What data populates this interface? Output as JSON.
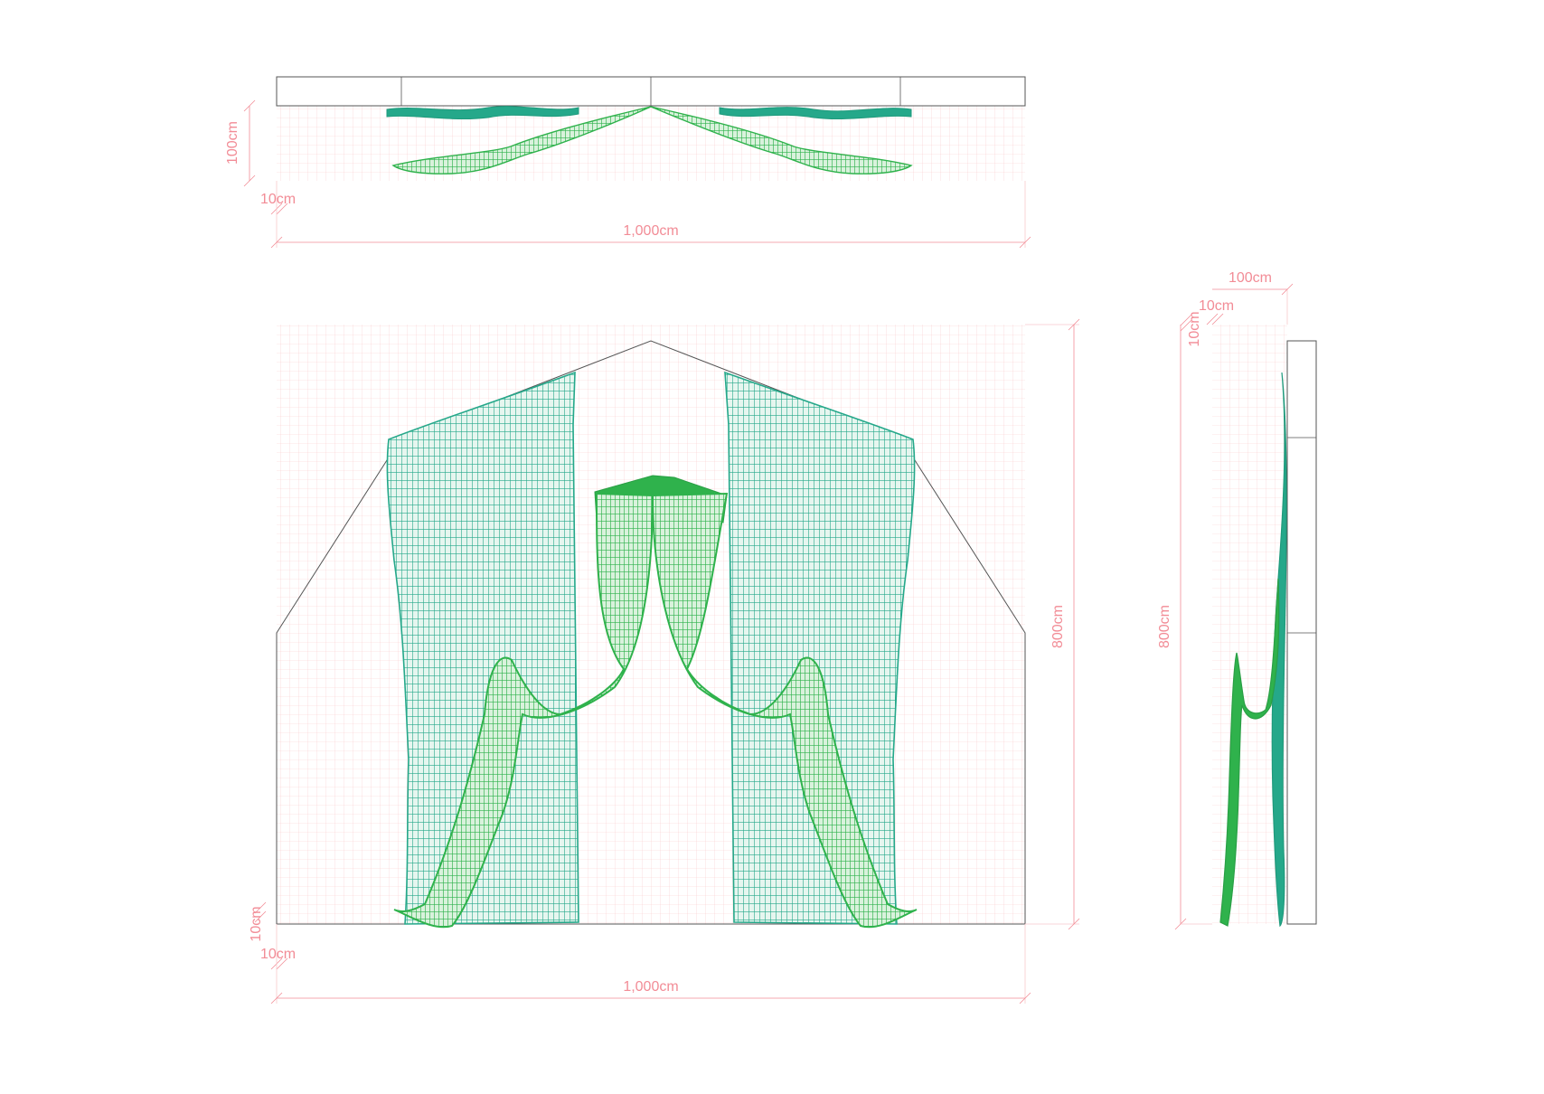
{
  "colors": {
    "grid": "#f9c9cc",
    "dimension": "#f28c96",
    "outline": "#555555",
    "curtain_teal": "#25a88a",
    "curtain_green": "#2fb24c"
  },
  "top_view": {
    "depth_label": "100cm",
    "offset_label": "10cm",
    "width_label": "1,000cm"
  },
  "front_view": {
    "height_label": "800cm",
    "offset_v_label": "10cm",
    "offset_h_label": "10cm",
    "width_label": "1,000cm"
  },
  "side_view": {
    "depth_label": "100cm",
    "offset_h_label": "10cm",
    "offset_v_label": "10cm",
    "height_label": "800cm"
  }
}
